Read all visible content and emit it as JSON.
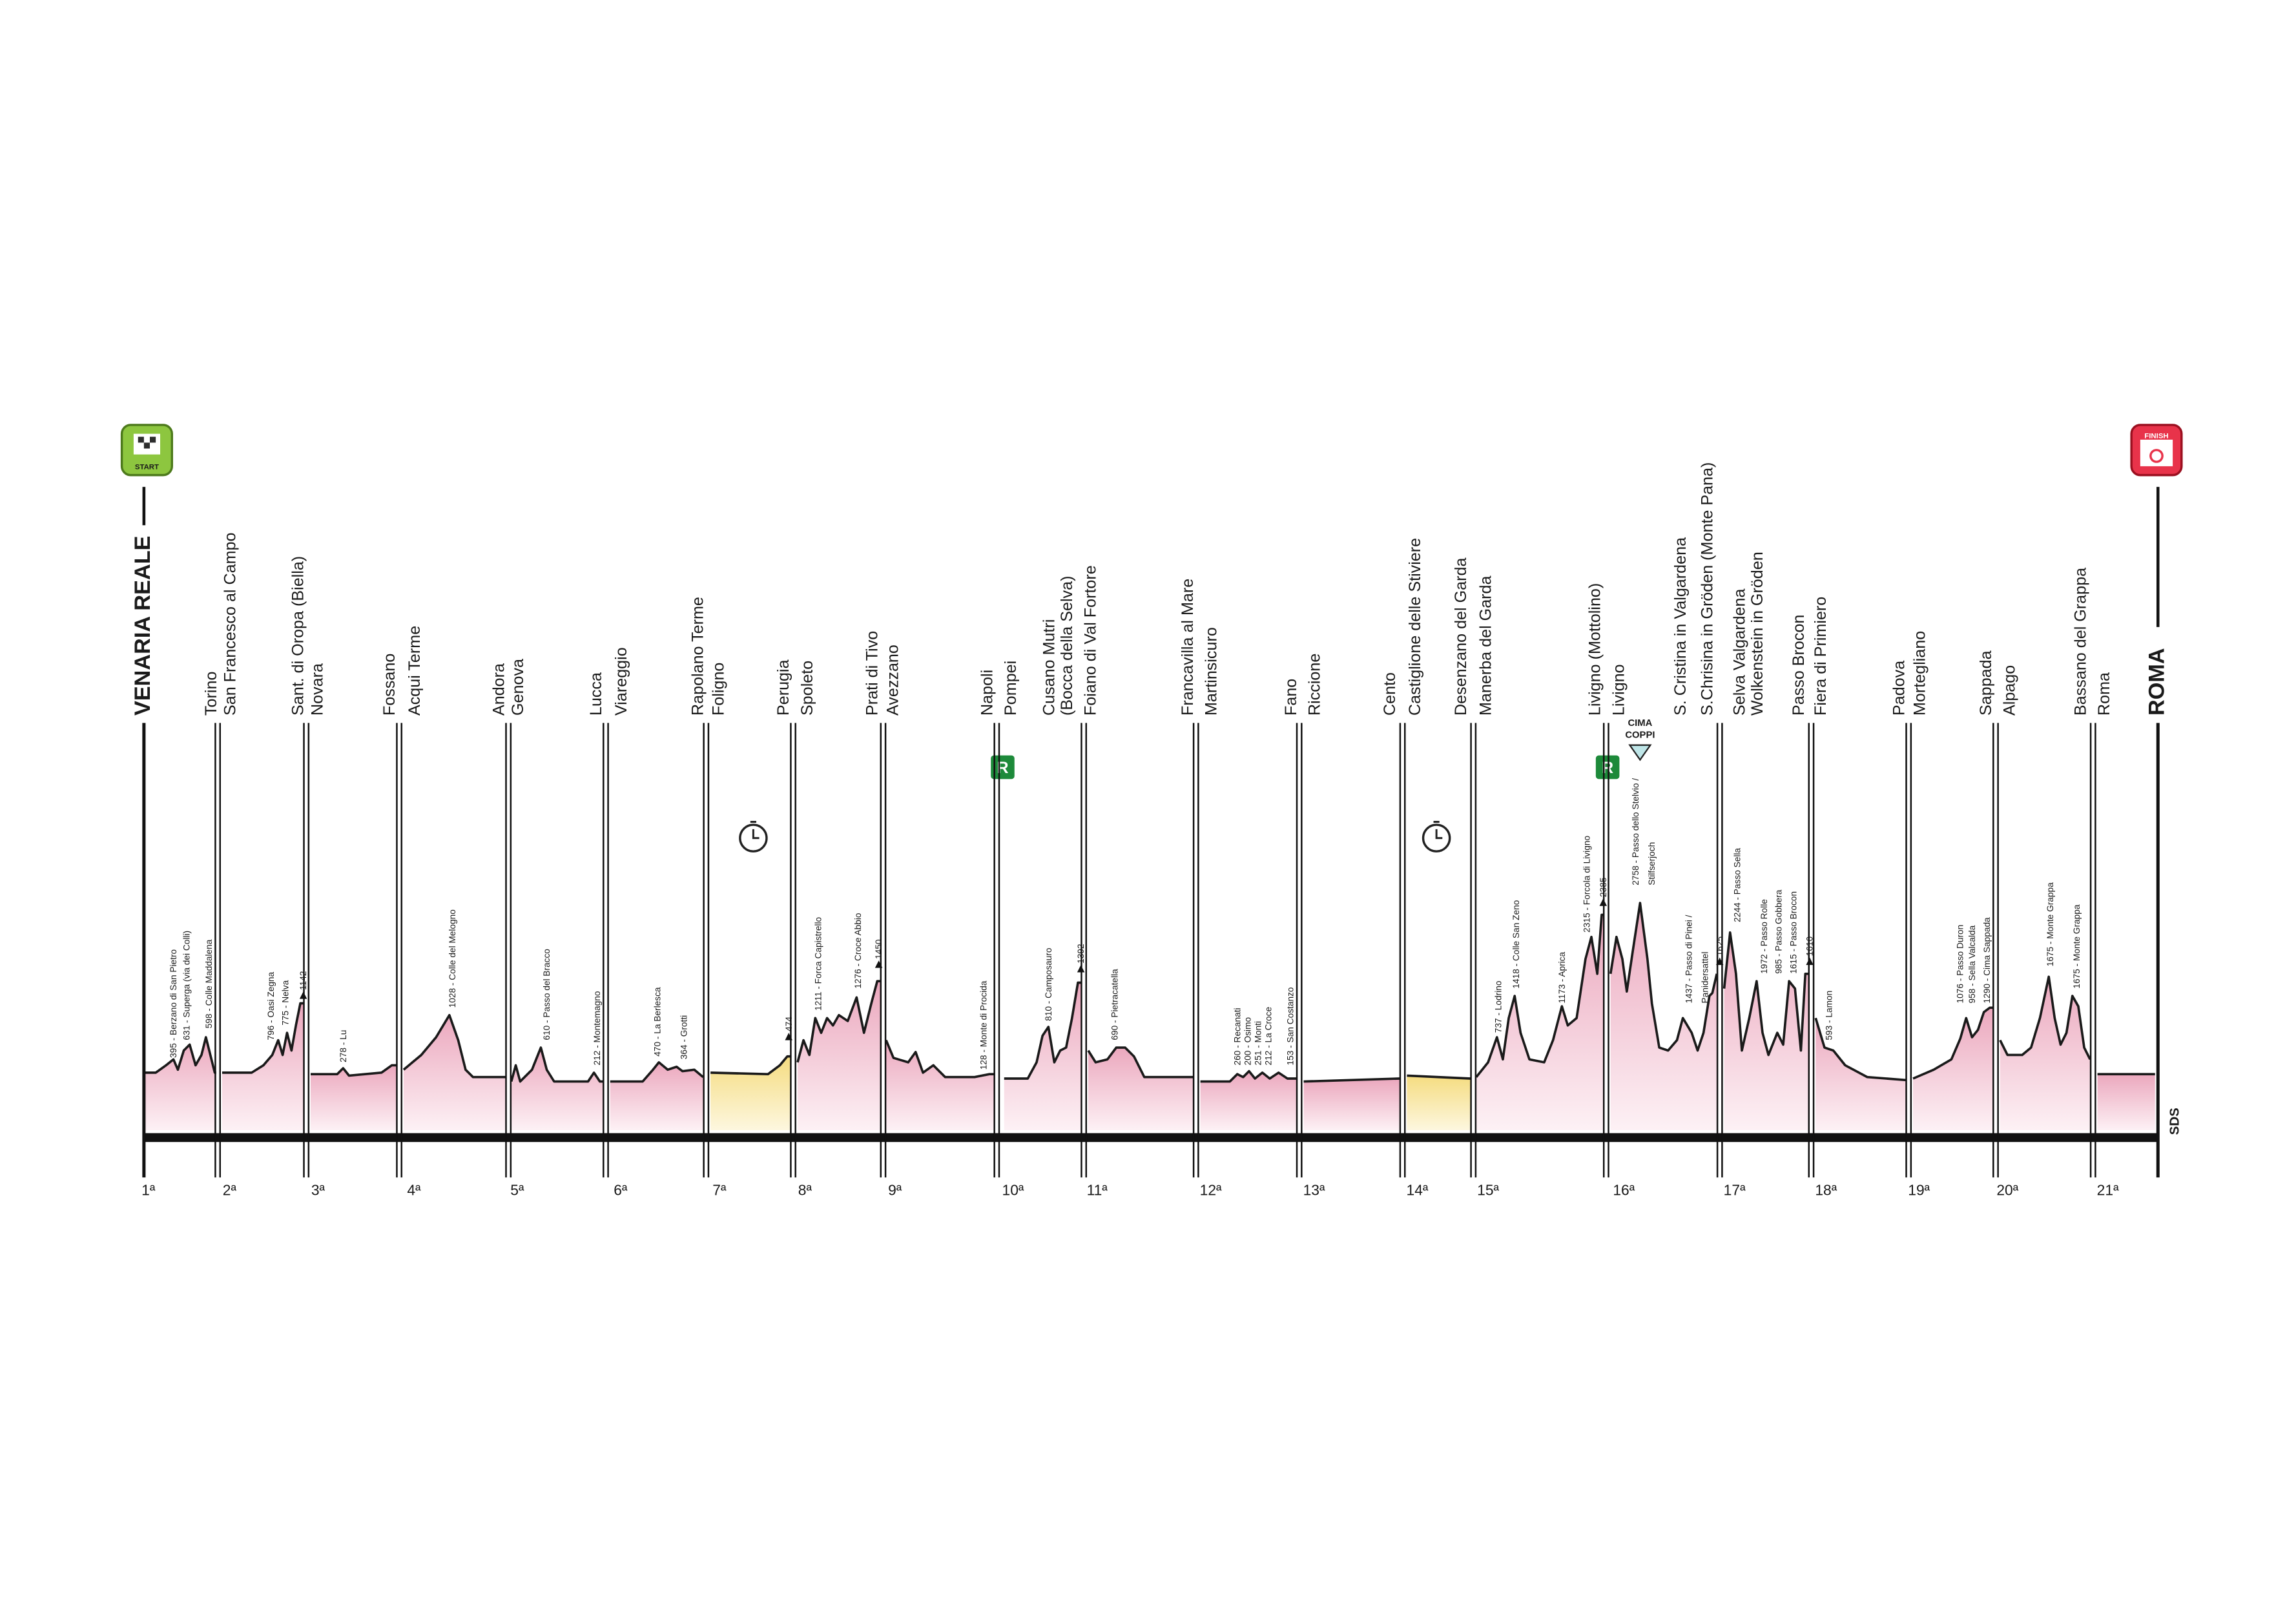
{
  "start_badge": "START",
  "finish_badge": "FINISH",
  "towns": [
    "VENARIA REALE",
    "Torino",
    "San Francesco al Campo",
    "Sant. di Oropa (Biella)",
    "Novara",
    "Fossano",
    "Acqui Terme",
    "Andora",
    "Genova",
    "Lucca",
    "Viareggio",
    "Rapolano Terme",
    "Foligno",
    "Perugia",
    "Spoleto",
    "Prati di Tivo",
    "Avezzano",
    "Napoli",
    "Pompei",
    "Cusano Mutri",
    "(Bocca della Selva)",
    "Foiano di Val Fortore",
    "Francavilla al Mare",
    "Martinsicuro",
    "Fano",
    "Riccione",
    "Cento",
    "Castiglione delle Stiviere",
    "Desenzano del Garda",
    "Manerba del Garda",
    "Livigno (Mottolino)",
    "Livigno",
    "S. Cristina in Valgardena",
    "S.Chrisina in Gröden (Monte Pana)",
    "Selva Valgardena",
    "Wolkenstein in Gröden",
    "Passo Brocon",
    "Fiera di Primiero",
    "Padova",
    "Mortegliano",
    "Sappada",
    "Alpago",
    "Bassano del Grappa",
    "Roma",
    "ROMA"
  ],
  "stages": [
    "1ª",
    "2ª",
    "3ª",
    "4ª",
    "5ª",
    "6ª",
    "7ª",
    "8ª",
    "9ª",
    "10ª",
    "11ª",
    "12ª",
    "13ª",
    "14ª",
    "15ª",
    "16ª",
    "17ª",
    "18ª",
    "19ª",
    "20ª",
    "21ª"
  ],
  "climbs": [
    "395 - Berzano di San Pietro",
    "631 - Superga (via dei Colli)",
    "598 - Colle Maddalena",
    "796 - Oasi Zegna",
    "775 - Nelva",
    "1142",
    "278 - Lu",
    "1028 - Colle del Melogno",
    "610 - Passo del Bracco",
    "212 - Montemagno",
    "470 - La Berlesca",
    "364 - Grotti",
    "474",
    "1211 - Forca Capistrello",
    "1276 - Croce Abbio",
    "1450",
    "128 - Monte di Procida",
    "810 - Camposauro",
    "1392",
    "690 - Pietracatella",
    "260 - Recanati",
    "200 - Osimo",
    "251 - Monti",
    "212 - La Croce",
    "153 - San Costanzo",
    "737 - Lodrino",
    "1418 - Colle San Zeno",
    "1173 - Aprica",
    "2315 - Forcola di Livigno",
    "2385",
    "2758 - Passo dello Stelvio /",
    "Stilfserjoch",
    "1437 - Passo di Pinei /",
    "Panidersattel",
    "1625",
    "2244 - Passo Sella",
    "1972 - Passo Rolle",
    "985 - Passo Gobbera",
    "1615 - Passo Brocon",
    "1610",
    "593 - Lamon",
    "1076 - Passo Duron",
    "958 - Sella Valcalda",
    "1290 - Cima Sappada",
    "1675 - Monte Grappa",
    "1675 - Monte Grappa"
  ],
  "rest_day_badges": [
    "R",
    "R"
  ],
  "cima_coppi": [
    "CIMA",
    "COPPI"
  ],
  "signature": "SDS"
}
